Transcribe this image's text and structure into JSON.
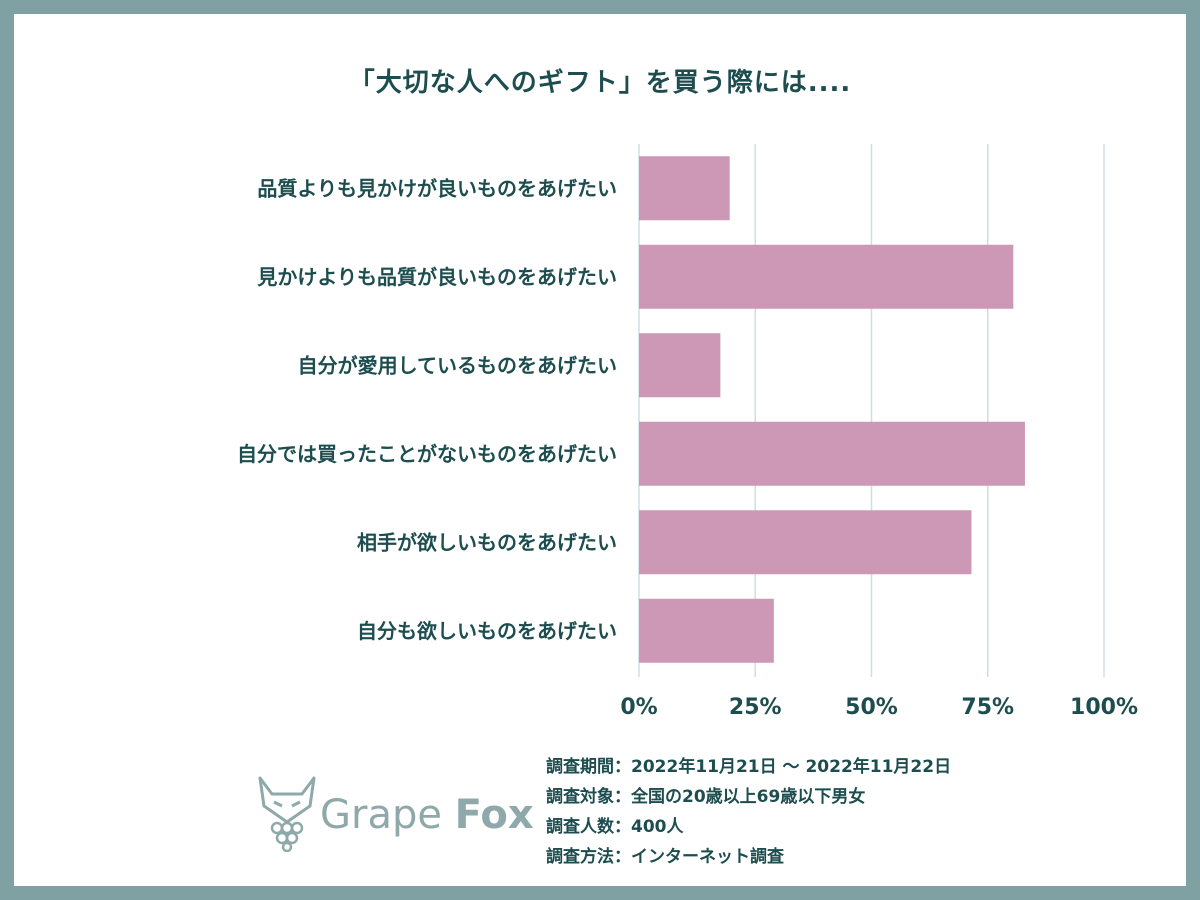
{
  "title": "「大切な人へのギフト」を買う際には....",
  "chart_data": {
    "type": "bar",
    "orientation": "horizontal",
    "categories": [
      "品質よりも見かけが良いものをあげたい",
      "見かけよりも品質が良いものをあげたい",
      "自分が愛用しているものをあげたい",
      "自分では買ったことがないものをあげたい",
      "相手が欲しいものをあげたい",
      "自分も欲しいものをあげたい"
    ],
    "values": [
      19.5,
      80.5,
      17.5,
      83,
      71.5,
      29
    ],
    "xlim": [
      0,
      100
    ],
    "ticks": [
      "0%",
      "25%",
      "50%",
      "75%",
      "100%"
    ],
    "tick_values": [
      0,
      25,
      50,
      75,
      100
    ],
    "grid": true,
    "bar_color": "#cc98b5",
    "grid_color": "#cfdfe0",
    "text_color": "#1d4d4f"
  },
  "footer": {
    "period": "調査期間：2022年11月21日 〜 2022年11月22日",
    "target": "調査対象：全国の20歳以上69歳以下男女",
    "count": "調査人数：400人",
    "method": "調査方法：インターネット調査"
  },
  "logo": {
    "word1": "Grape",
    "word2": "Fox",
    "color": "#8fa9ab"
  }
}
